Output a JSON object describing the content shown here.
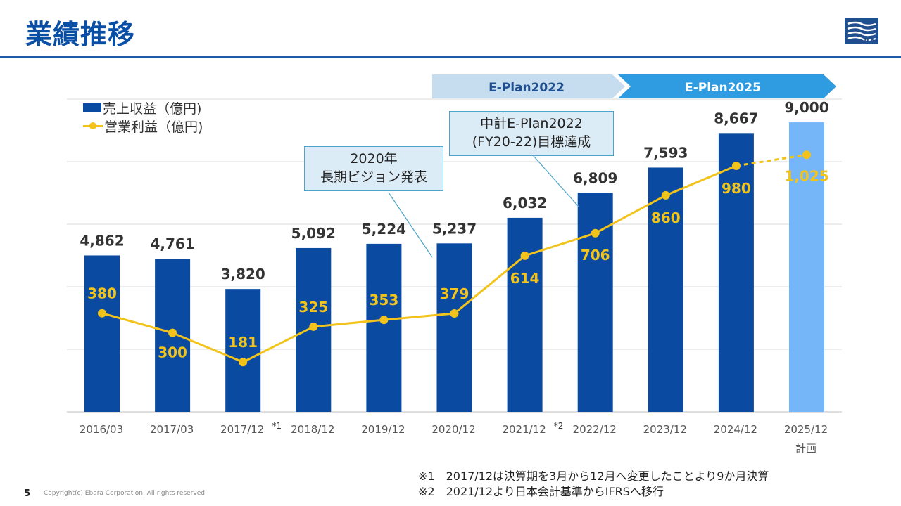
{
  "title": "業績推移",
  "logo": {
    "text": "EBARA"
  },
  "banners": {
    "left": "E-Plan2022",
    "right": "E-Plan2025"
  },
  "chart_data": {
    "type": "bar",
    "categories": [
      "2016/03",
      "2017/03",
      "2017/12",
      "2018/12",
      "2019/12",
      "2020/12",
      "2021/12",
      "2022/12",
      "2023/12",
      "2024/12",
      "2025/12"
    ],
    "category_sublabels": [
      "",
      "",
      "",
      "",
      "",
      "",
      "",
      "",
      "",
      "",
      "計画"
    ],
    "category_marks": [
      "",
      "",
      "*1",
      "",
      "",
      "",
      "*2",
      "",
      "",
      "",
      ""
    ],
    "series": [
      {
        "name": "売上収益（億円)",
        "type": "bar",
        "values": [
          4862,
          4761,
          3820,
          5092,
          5224,
          5237,
          6032,
          6809,
          7593,
          8667,
          9000
        ],
        "labels": [
          "4,862",
          "4,761",
          "3,820",
          "5,092",
          "5,224",
          "5,237",
          "6,032",
          "6,809",
          "7,593",
          "8,667",
          "9,000"
        ],
        "color": "#0a4aa0",
        "plan_color": "#74b6f7"
      },
      {
        "name": "営業利益（億円)",
        "type": "line",
        "values": [
          380,
          300,
          181,
          325,
          353,
          379,
          614,
          706,
          860,
          980,
          1025
        ],
        "labels": [
          "380",
          "300",
          "181",
          "325",
          "353",
          "379",
          "614",
          "706",
          "860",
          "980",
          "1,025"
        ],
        "color": "#f2c31b"
      }
    ],
    "plan_index": 10,
    "grid": true
  },
  "legend": {
    "sales": "売上収益（億円)",
    "profit": "営業利益（億円)"
  },
  "callouts": {
    "vision_line1": "2020年",
    "vision_line2": "長期ビジョン発表",
    "eplan_line1": "中計E-Plan2022",
    "eplan_line2": "(FY20-22)目標達成"
  },
  "notes": {
    "n1": "※1　2017/12は決算期を3月から12月へ変更したことより9か月決算",
    "n2": "※2　2021/12より日本会計基準からIFRSへ移行"
  },
  "footer": {
    "page": "5",
    "copyright": "Copyright(c) Ebara Corporation, All rights reserved"
  }
}
